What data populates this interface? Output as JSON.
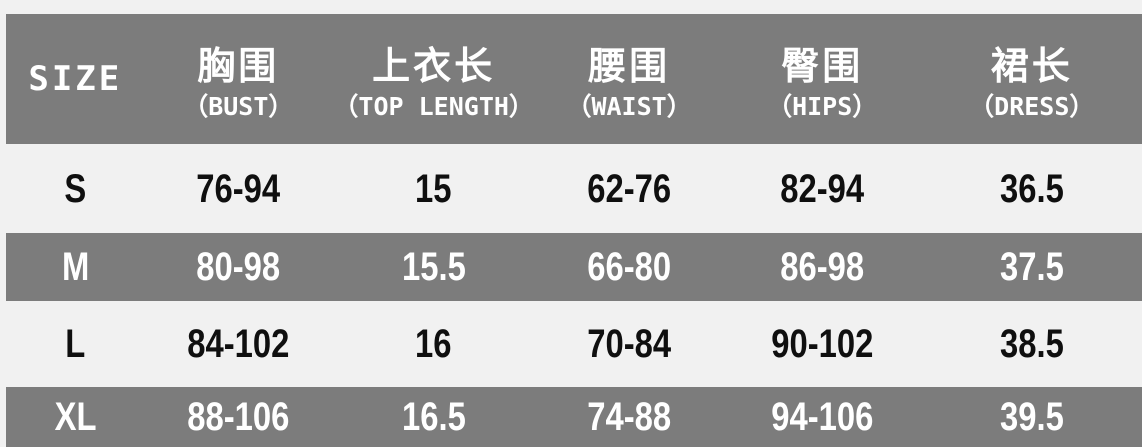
{
  "colors": {
    "band_gray": "#7c7c7c",
    "page_background": "#f1f1f1",
    "text_on_gray": "#ffffff",
    "text_on_light": "#0f0f0f"
  },
  "chart_data": {
    "type": "table",
    "title": "SIZE",
    "columns": [
      {
        "title": "SIZE",
        "subtitle": ""
      },
      {
        "title": "胸围",
        "subtitle": "（BUST）"
      },
      {
        "title": "上衣长",
        "subtitle": "（TOP LENGTH）"
      },
      {
        "title": "腰围",
        "subtitle": "（WAIST）"
      },
      {
        "title": "臀围",
        "subtitle": "（HIPS）"
      },
      {
        "title": "裙长",
        "subtitle": "（DRESS）"
      }
    ],
    "rows": [
      [
        "S",
        "76-94",
        "15",
        "62-76",
        "82-94",
        "36.5"
      ],
      [
        "M",
        "80-98",
        "15.5",
        "66-80",
        "86-98",
        "37.5"
      ],
      [
        "L",
        "84-102",
        "16",
        "70-84",
        "90-102",
        "38.5"
      ],
      [
        "XL",
        "88-106",
        "16.5",
        "74-88",
        "94-106",
        "39.5"
      ]
    ]
  }
}
